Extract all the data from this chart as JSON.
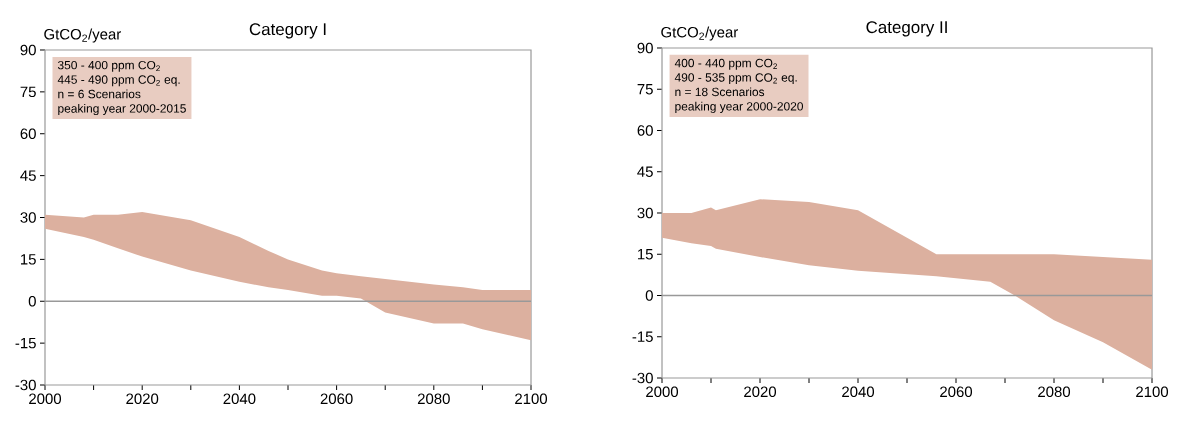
{
  "chart_data": [
    {
      "type": "area",
      "title": "Category I",
      "ylabel": "GtCO$_{2}$/year",
      "annotations": [
        "350 - 400 ppm CO$_{2}$",
        "445 - 490 ppm CO$_{2}$ eq.",
        "n = 6 Scenarios",
        "peaking year 2000-2015"
      ],
      "x": [
        2000,
        2008,
        2010,
        2015,
        2020,
        2030,
        2040,
        2046,
        2050,
        2057,
        2060,
        2065,
        2070,
        2080,
        2086,
        2090,
        2100
      ],
      "series": [
        {
          "color": "#dcb09f",
          "values": [
            null,
            null,
            null,
            null,
            null,
            null,
            null,
            null,
            null,
            null,
            null,
            null,
            null,
            null,
            null,
            null,
            null
          ],
          "upper": [
            31,
            30,
            31,
            31,
            32,
            29,
            23,
            18,
            15,
            11,
            10,
            9,
            8,
            6,
            5,
            4,
            4
          ],
          "lower": [
            26,
            23,
            22,
            19,
            16,
            11,
            7,
            5,
            4,
            2,
            2,
            1,
            -4,
            -8,
            -8,
            -10,
            -14
          ]
        }
      ],
      "xlim": [
        2000,
        2100
      ],
      "ylim": [
        -30,
        90
      ],
      "xticks": [
        2000,
        {
          "value": 2010,
          "label": null
        },
        2020,
        {
          "value": 2030,
          "label": null
        },
        2040,
        {
          "value": 2050,
          "label": null
        },
        2060,
        {
          "value": 2070,
          "label": null
        },
        2080,
        {
          "value": 2090,
          "label": null
        },
        2100
      ],
      "yticks": [
        -30,
        -15,
        0,
        15,
        30,
        45,
        60,
        75,
        90
      ],
      "ref_lines": [
        {
          "axis": "y",
          "value": 0,
          "color": "#999999"
        }
      ]
    },
    {
      "type": "area",
      "title": "Category II",
      "ylabel": "GtCO$_{2}$/year",
      "annotations": [
        "400 - 440 ppm CO$_{2}$",
        "490 - 535 ppm CO$_{2}$ eq.",
        "n = 18 Scenarios",
        "peaking year 2000-2020"
      ],
      "x": [
        2000,
        2006,
        2010,
        2011,
        2020,
        2030,
        2040,
        2056,
        2067,
        2072,
        2080,
        2090,
        2100
      ],
      "series": [
        {
          "color": "#dcb09f",
          "values": [
            null,
            null,
            null,
            null,
            null,
            null,
            null,
            null,
            null,
            null,
            null,
            null,
            null
          ],
          "upper": [
            30,
            30,
            32,
            31,
            35,
            34,
            31,
            15,
            15,
            15,
            15,
            14,
            13
          ],
          "lower": [
            21,
            19,
            18,
            17,
            14,
            11,
            9,
            7,
            5,
            0,
            -9,
            -17,
            -27
          ]
        }
      ],
      "xlim": [
        2000,
        2100
      ],
      "ylim": [
        -30,
        90
      ],
      "xticks": [
        2000,
        {
          "value": 2010,
          "label": null
        },
        2020,
        {
          "value": 2030,
          "label": null
        },
        2040,
        {
          "value": 2050,
          "label": null
        },
        2060,
        {
          "value": 2070,
          "label": null
        },
        2080,
        {
          "value": 2090,
          "label": null
        },
        2100
      ],
      "yticks": [
        -30,
        -15,
        0,
        15,
        30,
        45,
        60,
        75,
        90
      ],
      "ref_lines": [
        {
          "axis": "y",
          "value": 0,
          "color": "#999999"
        }
      ]
    }
  ]
}
